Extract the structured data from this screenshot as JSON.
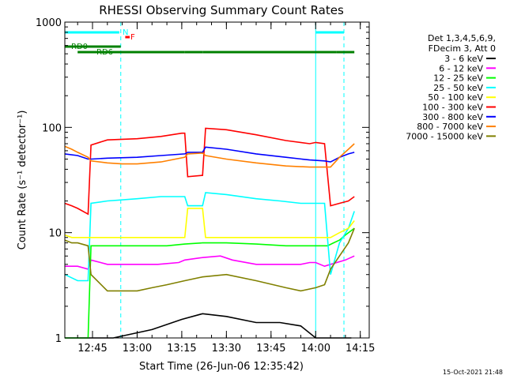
{
  "chart_data": {
    "type": "line",
    "title": "RHESSI Observing Summary Count Rates",
    "xlabel": "Start Time (26-Jun-06 12:35:42)",
    "ylabel": "Count Rate (s⁻¹ detector⁻¹)",
    "yscale": "log",
    "ylim": [
      1,
      1000
    ],
    "xlim": [
      "12:35:42",
      "14:18:00"
    ],
    "xticks": [
      "12:45",
      "13:00",
      "13:15",
      "13:30",
      "13:45",
      "14:00",
      "14:15"
    ],
    "yticks": [
      "1",
      "10",
      "100",
      "1000"
    ],
    "grid": false,
    "legend_position": "right",
    "legend_header": [
      "Det 1,3,4,5,6,9,",
      "FDecim 3, Att 0"
    ],
    "footer": "15-Oct-2021 21:48",
    "flags": [
      {
        "label": "N",
        "color": "#00ffff",
        "segments": [
          [
            "12:35:42",
            "12:54:00"
          ],
          [
            "14:00:00",
            "14:09:30"
          ]
        ]
      },
      {
        "label": "F",
        "color": "#ff0000",
        "segments": [
          [
            "12:56:00",
            "12:57:30"
          ]
        ]
      },
      {
        "label": "RD0",
        "color": "#008000",
        "segments": [
          [
            "12:35:42",
            "12:40:00"
          ],
          [
            "12:40:00",
            "12:54:30"
          ]
        ]
      },
      {
        "label": "RD6",
        "color": "#008000",
        "segments": [
          [
            "12:40:00",
            "13:16:00"
          ],
          [
            "13:16:00",
            "13:22:00"
          ],
          [
            "13:22:00",
            "14:07:00"
          ],
          [
            "14:07:00",
            "14:13:00"
          ]
        ]
      }
    ],
    "night_markers": [
      {
        "time": "12:35:42",
        "color": "#00ffff",
        "style": "solid"
      },
      {
        "time": "12:54:30",
        "color": "#00ffff",
        "style": "dashed"
      },
      {
        "time": "14:00:00",
        "color": "#00ffff",
        "style": "solid"
      },
      {
        "time": "14:09:30",
        "color": "#00ffff",
        "style": "dashed"
      }
    ],
    "series": [
      {
        "name": "3 - 6 keV",
        "color": "#000000",
        "x": [
          "12:35:42",
          "12:40:00",
          "12:45:00",
          "12:52:00",
          "13:05:00",
          "13:15:00",
          "13:22:00",
          "13:30:00",
          "13:40:00",
          "13:48:00",
          "13:55:00",
          "14:00:00",
          "14:05:00",
          "14:12:00"
        ],
        "y": [
          1.0,
          1.0,
          1.0,
          1.0,
          1.2,
          1.5,
          1.7,
          1.6,
          1.4,
          1.4,
          1.3,
          1.0,
          1.0,
          1.0
        ]
      },
      {
        "name": "6 - 12 keV",
        "color": "#ff00ff",
        "x": [
          "12:35:42",
          "12:40:00",
          "12:43:30",
          "12:44:30",
          "12:50:00",
          "12:55:00",
          "13:00:00",
          "13:07:00",
          "13:14:00",
          "13:16:00",
          "13:22:00",
          "13:28:00",
          "13:32:00",
          "13:40:00",
          "13:48:00",
          "13:55:00",
          "13:58:00",
          "14:00:00",
          "14:03:00",
          "14:05:00",
          "14:10:00",
          "14:13:00"
        ],
        "y": [
          4.8,
          4.8,
          4.5,
          5.5,
          5.0,
          5.0,
          5.0,
          5.0,
          5.2,
          5.5,
          5.8,
          6.0,
          5.5,
          5.0,
          5.0,
          5.0,
          5.2,
          5.2,
          4.8,
          5.0,
          5.5,
          6.0
        ]
      },
      {
        "name": "12 - 25 keV",
        "color": "#00ff00",
        "x": [
          "12:35:42",
          "12:40:00",
          "12:43:30",
          "12:44:30",
          "12:50:00",
          "13:00:00",
          "13:10:00",
          "13:16:00",
          "13:22:00",
          "13:30:00",
          "13:40:00",
          "13:50:00",
          "13:58:00",
          "14:02:00",
          "14:04:00",
          "14:06:00",
          "14:08:00",
          "14:10:00",
          "14:13:00"
        ],
        "y": [
          1.0,
          1.0,
          1.0,
          7.5,
          7.5,
          7.5,
          7.5,
          7.8,
          8.0,
          8.0,
          7.8,
          7.5,
          7.5,
          7.5,
          7.5,
          8.0,
          8.5,
          9.5,
          11.0
        ]
      },
      {
        "name": "25 - 50 keV",
        "color": "#00ffff",
        "x": [
          "12:35:42",
          "12:40:00",
          "12:43:30",
          "12:44:30",
          "12:50:00",
          "13:00:00",
          "13:08:00",
          "13:16:00",
          "13:17:00",
          "13:22:00",
          "13:23:00",
          "13:30:00",
          "13:40:00",
          "13:48:00",
          "13:55:00",
          "13:58:00",
          "14:03:00",
          "14:05:00",
          "14:08:00",
          "14:11:00",
          "14:13:00"
        ],
        "y": [
          4.0,
          3.5,
          3.5,
          19,
          20,
          21,
          22,
          22,
          18,
          18,
          24,
          23,
          21,
          20,
          19,
          19,
          19,
          4.0,
          8.0,
          11.0,
          16.0
        ]
      },
      {
        "name": "50 - 100 keV",
        "color": "#ffff00",
        "x": [
          "12:35:42",
          "12:38:00",
          "12:40:00",
          "12:43:30",
          "13:16:00",
          "13:17:00",
          "13:22:00",
          "13:23:00",
          "14:05:00",
          "14:08:00",
          "14:11:00",
          "14:13:00"
        ],
        "y": [
          9.5,
          9.0,
          9.0,
          9.0,
          9.0,
          17,
          17,
          9.0,
          9.0,
          10.0,
          11.0,
          13.0
        ]
      },
      {
        "name": "100 - 300 keV",
        "color": "#ff0000",
        "x": [
          "12:35:42",
          "12:38:00",
          "12:40:00",
          "12:43:30",
          "12:44:30",
          "12:50:00",
          "13:00:00",
          "13:08:00",
          "13:15:00",
          "13:16:00",
          "13:17:00",
          "13:22:00",
          "13:23:00",
          "13:30:00",
          "13:40:00",
          "13:50:00",
          "13:58:00",
          "14:00:00",
          "14:03:00",
          "14:05:00",
          "14:08:00",
          "14:11:00",
          "14:13:00"
        ],
        "y": [
          19,
          18,
          17,
          15,
          68,
          76,
          78,
          82,
          88,
          88,
          34,
          35,
          98,
          95,
          85,
          75,
          70,
          72,
          70,
          18,
          19,
          20,
          22
        ]
      },
      {
        "name": "300 - 800 keV",
        "color": "#0000ff",
        "x": [
          "12:35:42",
          "12:40:00",
          "12:43:30",
          "12:44:30",
          "12:50:00",
          "13:00:00",
          "13:08:00",
          "13:16:00",
          "13:17:00",
          "13:22:00",
          "13:23:00",
          "13:30:00",
          "13:40:00",
          "13:50:00",
          "13:58:00",
          "14:03:00",
          "14:05:00",
          "14:08:00",
          "14:11:00",
          "14:13:00"
        ],
        "y": [
          56,
          54,
          50,
          50,
          51,
          52,
          54,
          56,
          58,
          58,
          65,
          62,
          56,
          52,
          49,
          48,
          47,
          52,
          56,
          58
        ]
      },
      {
        "name": "800 - 7000 keV",
        "color": "#ff8000",
        "x": [
          "12:35:42",
          "12:38:00",
          "12:40:00",
          "12:43:30",
          "12:44:30",
          "12:50:00",
          "12:55:00",
          "13:00:00",
          "13:08:00",
          "13:16:00",
          "13:17:00",
          "13:22:00",
          "13:23:00",
          "13:30:00",
          "13:40:00",
          "13:50:00",
          "13:58:00",
          "14:03:00",
          "14:05:00",
          "14:08:00",
          "14:11:00",
          "14:13:00"
        ],
        "y": [
          66,
          62,
          58,
          52,
          48,
          46,
          45,
          45,
          47,
          52,
          56,
          57,
          54,
          50,
          46,
          43,
          42,
          42,
          42,
          52,
          62,
          70
        ]
      },
      {
        "name": "7000 - 15000 keV",
        "color": "#808000",
        "x": [
          "12:35:42",
          "12:38:00",
          "12:40:00",
          "12:43:30",
          "12:44:30",
          "12:50:00",
          "13:00:00",
          "13:05:00",
          "13:10:00",
          "13:16:00",
          "13:22:00",
          "13:30:00",
          "13:40:00",
          "13:50:00",
          "13:55:00",
          "14:00:00",
          "14:03:00",
          "14:05:00",
          "14:08:00",
          "14:11:00",
          "14:13:00"
        ],
        "y": [
          8.5,
          8.0,
          8.0,
          7.5,
          4.0,
          2.8,
          2.8,
          3.0,
          3.2,
          3.5,
          3.8,
          4.0,
          3.5,
          3.0,
          2.8,
          3.0,
          3.2,
          4.5,
          6.0,
          8.0,
          11.0
        ]
      }
    ]
  }
}
